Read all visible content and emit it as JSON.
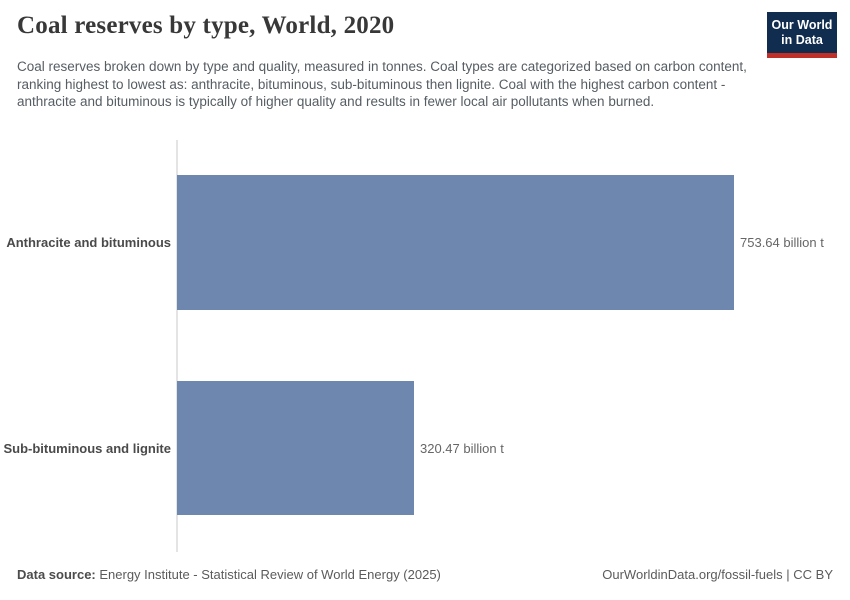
{
  "header": {
    "title": "Coal reserves by type, World, 2020",
    "subtitle": "Coal reserves broken down by type and quality, measured in tonnes. Coal types are categorized based on carbon content, ranking highest to lowest as: anthracite, bituminous, sub-bituminous then lignite. Coal with the highest carbon content - anthracite and bituminous is typically of higher quality and results in fewer local air pollutants when burned.",
    "logo": {
      "line1": "Our World",
      "line2": "in Data",
      "bg_color": "#102d50",
      "accent_color": "#c0302b"
    }
  },
  "chart_data": {
    "type": "bar",
    "orientation": "horizontal",
    "title": "Coal reserves by type, World, 2020",
    "categories": [
      "Anthracite and bituminous",
      "Sub-bituminous and lignite"
    ],
    "values": [
      753.64,
      320.47
    ],
    "value_labels": [
      "753.64 billion t",
      "320.47 billion t"
    ],
    "unit": "billion t",
    "bar_color": "#6e87ae",
    "xlim": [
      0,
      753.64
    ],
    "grid": false,
    "legend": false
  },
  "footer": {
    "source_label": "Data source:",
    "source_text": " Energy Institute - Statistical Review of World Energy (2025)",
    "url": "OurWorldinData.org/fossil-fuels",
    "separator": " | ",
    "license": "CC BY"
  }
}
